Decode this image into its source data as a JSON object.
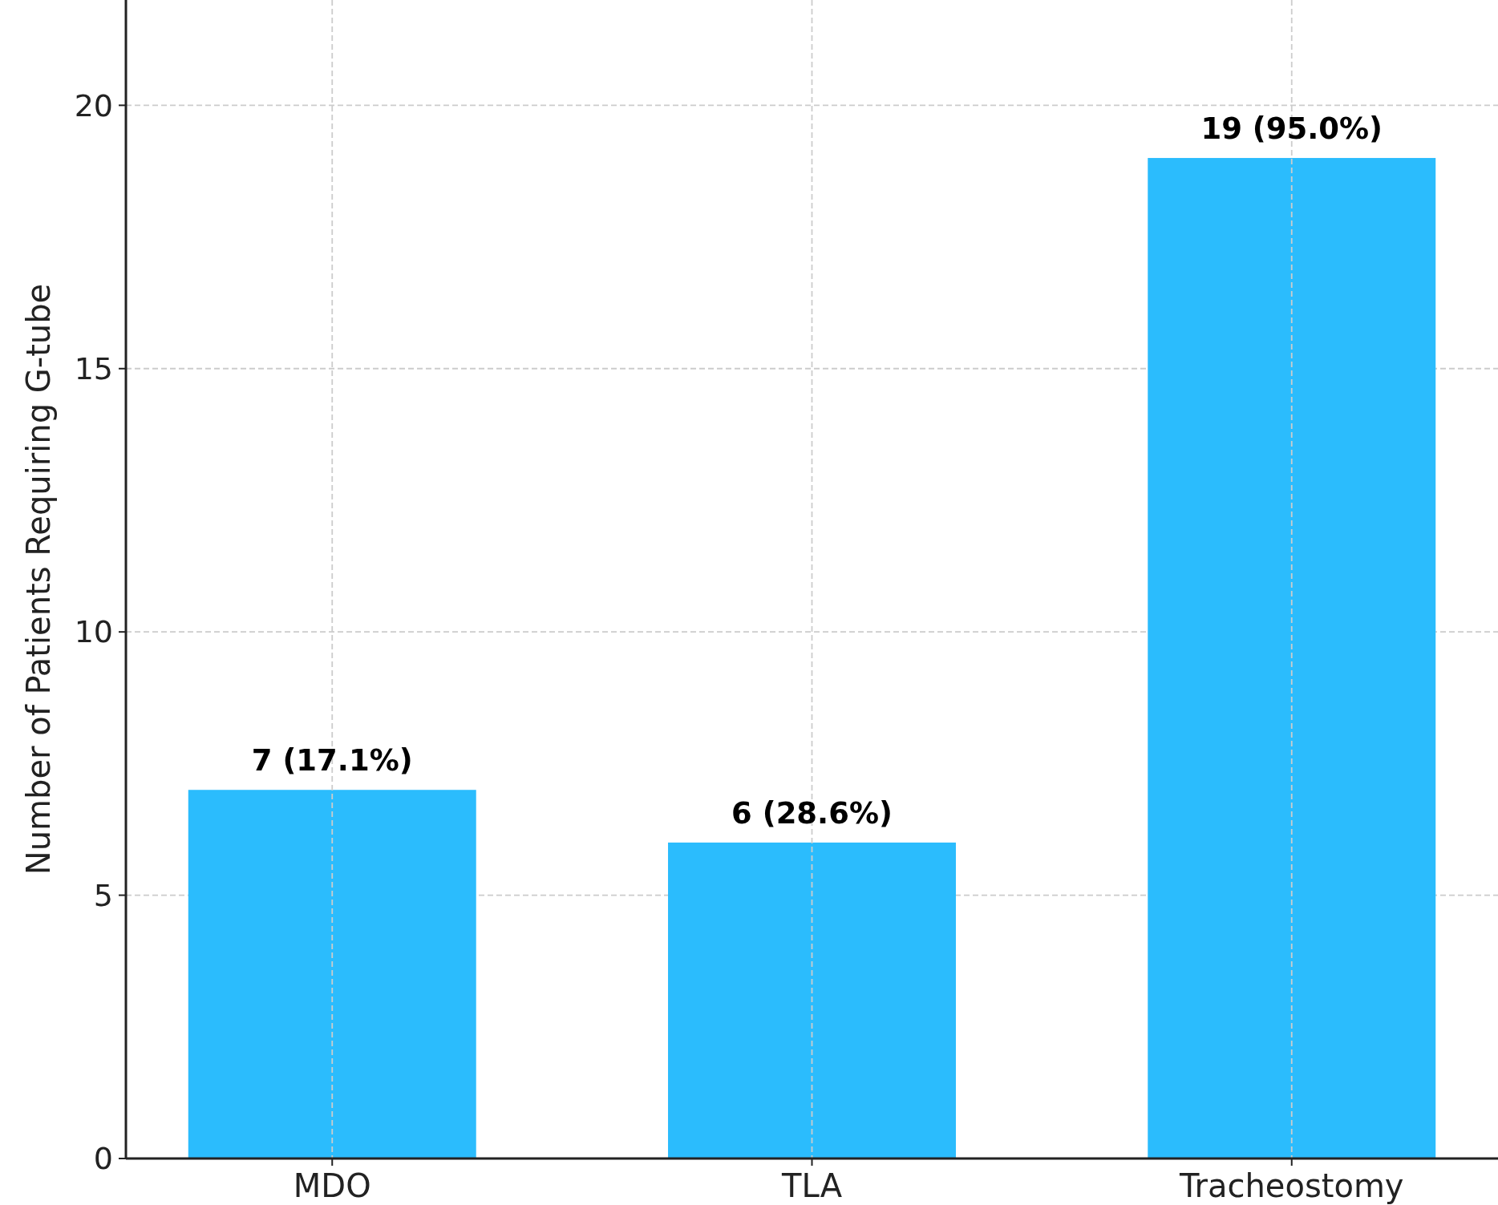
{
  "chart_data": {
    "type": "bar",
    "ylabel": "Number of Patients Requiring G-tube",
    "categories": [
      "MDO",
      "TLA",
      "Tracheostomy"
    ],
    "values": [
      7,
      6,
      19
    ],
    "value_labels": [
      "7 (17.1%)",
      "6 (28.6%)",
      "19 (95.0%)"
    ],
    "color": "#2bbcfd",
    "ylim": [
      0,
      22
    ],
    "yticks": [
      0,
      5,
      10,
      15,
      20
    ],
    "grid": true
  }
}
